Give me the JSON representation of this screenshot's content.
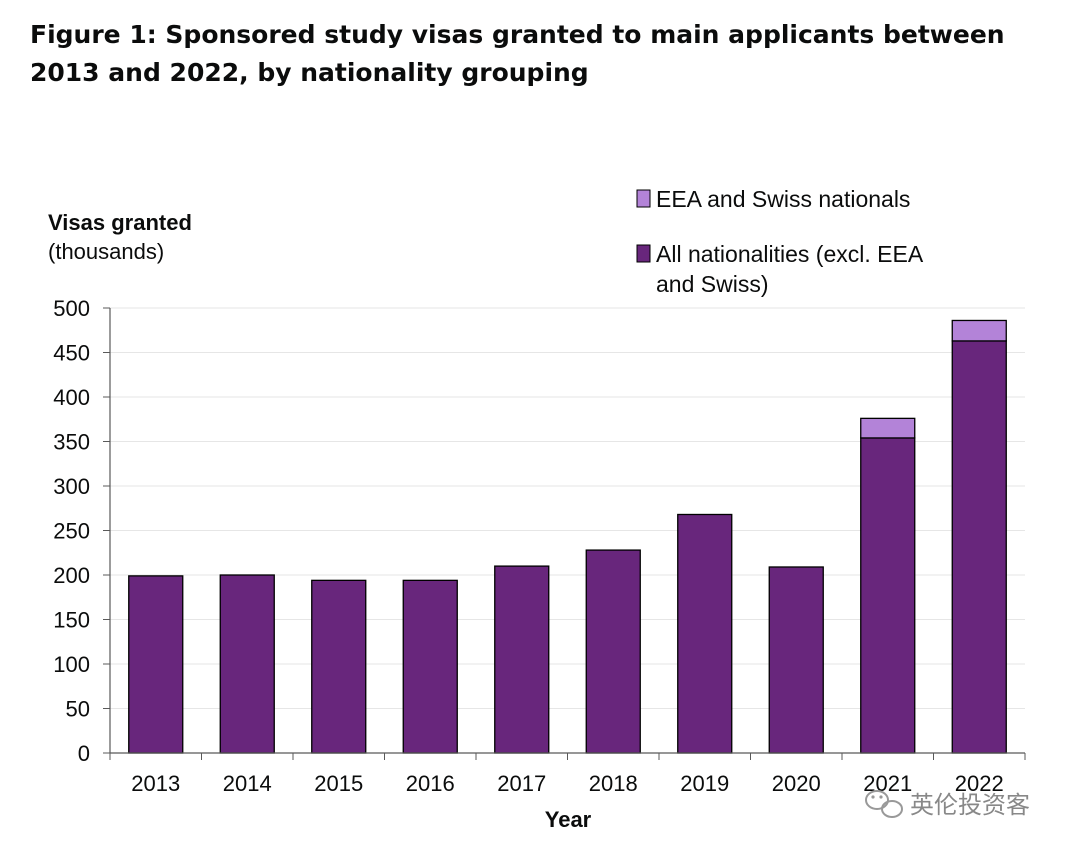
{
  "figure": {
    "title": "Figure 1: Sponsored study visas granted to main applicants between 2013 and 2022, by nationality grouping"
  },
  "watermark": {
    "text": "英伦投资客",
    "icon": "wechat-icon"
  },
  "colors": {
    "non_eea": "#68267c",
    "eea": "#b383d8",
    "grid": "#e6e6e6",
    "axis": "#595959"
  },
  "chart_data": {
    "type": "bar",
    "stacked": true,
    "ylabel": "Visas granted",
    "ylabel_unit": "(thousands)",
    "xlabel": "Year",
    "ylim": [
      0,
      500
    ],
    "yticks": [
      0,
      50,
      100,
      150,
      200,
      250,
      300,
      350,
      400,
      450,
      500
    ],
    "grid": true,
    "legend_position": "top-right",
    "categories": [
      "2013",
      "2014",
      "2015",
      "2016",
      "2017",
      "2018",
      "2019",
      "2020",
      "2021",
      "2022"
    ],
    "series": [
      {
        "name": "All nationalities (excl. EEA and Swiss)",
        "legend_lines": [
          "All nationalities (excl. EEA",
          "and Swiss)"
        ],
        "color": "#68267c",
        "values": [
          199,
          200,
          194,
          194,
          210,
          228,
          268,
          209,
          354,
          463
        ]
      },
      {
        "name": "EEA and Swiss nationals",
        "legend_lines": [
          "EEA and Swiss nationals"
        ],
        "color": "#b383d8",
        "values": [
          0,
          0,
          0,
          0,
          0,
          0,
          0,
          0,
          22,
          23
        ]
      }
    ]
  }
}
